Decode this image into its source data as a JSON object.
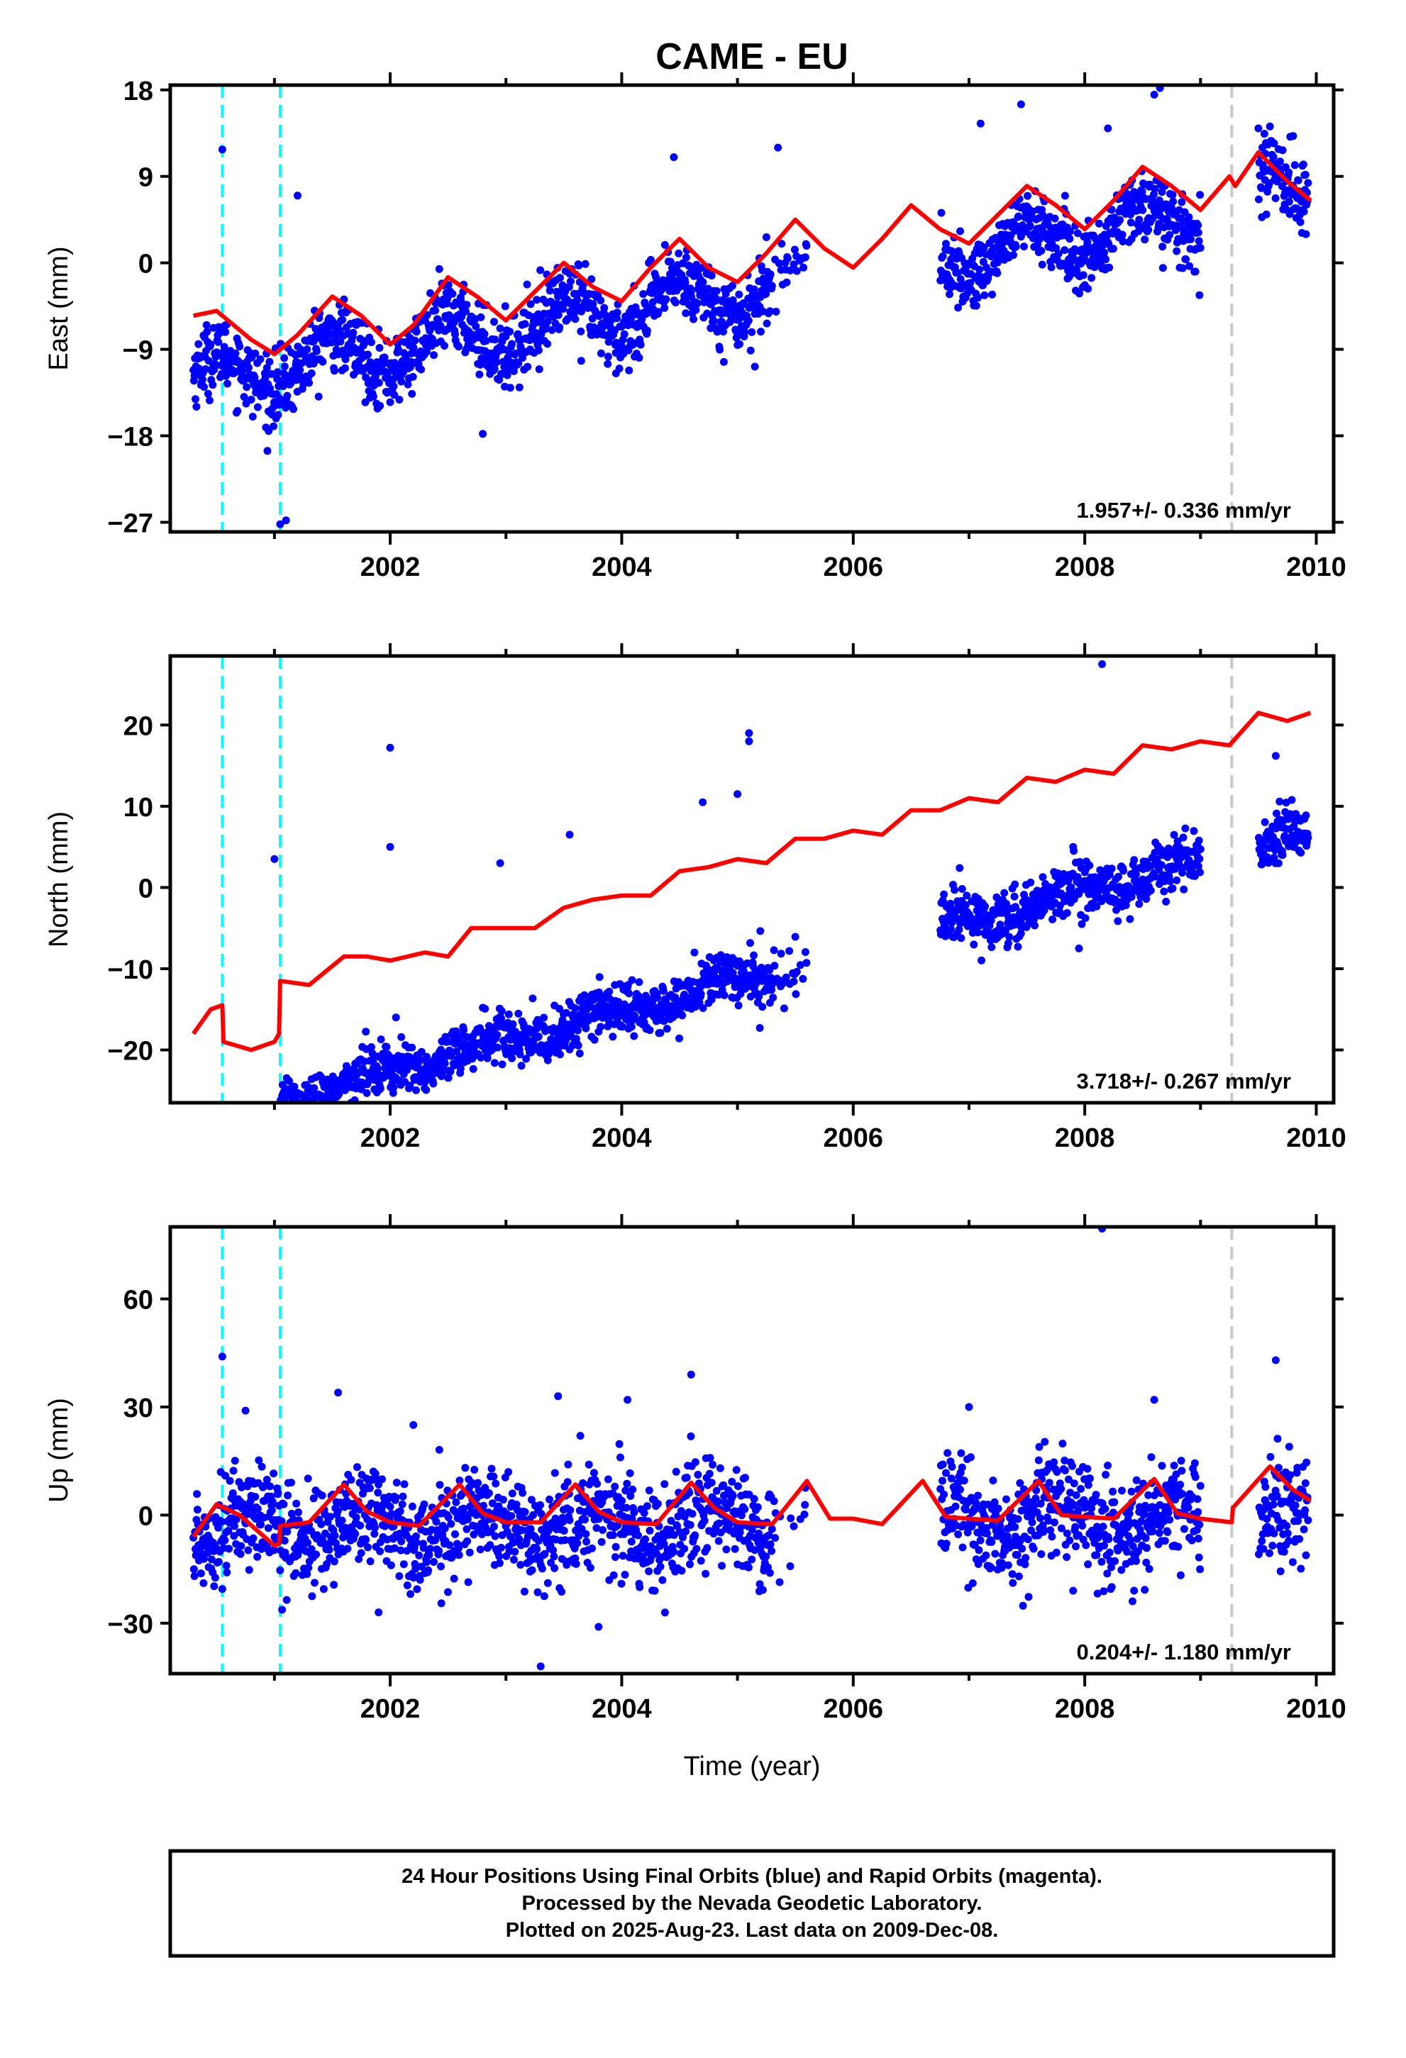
{
  "title": "CAME - EU",
  "xlabel": "Time (year)",
  "caption": {
    "line1": "24 Hour Positions Using Final Orbits (blue) and Rapid Orbits (magenta).",
    "line2": "Processed by the Nevada Geodetic Laboratory.",
    "line3": "Plotted on 2025-Aug-23. Last data on 2009-Dec-08."
  },
  "colors": {
    "points": "#0000ff",
    "model": "#ff0000",
    "equipment_change": "#00ffff",
    "other_change": "#c8c8c8"
  },
  "chart_data": [
    {
      "type": "scatter",
      "name": "east",
      "ylabel": "East (mm)",
      "xlim": [
        2000.1,
        2010.15
      ],
      "ylim": [
        -28,
        18.5
      ],
      "yticks": [
        18,
        9,
        0,
        -9,
        -18,
        -27
      ],
      "xticks": [
        2002,
        2004,
        2006,
        2008,
        2010
      ],
      "rate_label": "1.957+/- 0.336 mm/yr",
      "trend": -5.5,
      "rate": 1.957,
      "offsets": [
        [
          2009.27,
          2.0
        ]
      ],
      "annual_amp": 2.4,
      "annual_phase": 0.25,
      "noise": 1.8,
      "gaps": [
        [
          2005.6,
          2006.75
        ],
        [
          2009.0,
          2009.5
        ]
      ],
      "sparse": [
        [
          2005.3,
          2005.6,
          0.3
        ]
      ],
      "outliers": [
        [
          2000.55,
          11.8
        ],
        [
          2000.95,
          -17.5
        ],
        [
          2001.2,
          7.0
        ],
        [
          2001.1,
          -26.8
        ],
        [
          2001.05,
          -27.2
        ],
        [
          2002.0,
          -14.5
        ],
        [
          2002.8,
          -17.8
        ],
        [
          2003.65,
          -10.2
        ],
        [
          2003.95,
          -11.5
        ],
        [
          2004.45,
          11.0
        ],
        [
          2005.15,
          -10.8
        ],
        [
          2005.35,
          12.0
        ],
        [
          2007.1,
          14.5
        ],
        [
          2007.45,
          16.5
        ],
        [
          2008.2,
          14.0
        ],
        [
          2008.6,
          17.5
        ],
        [
          2008.65,
          18.2
        ],
        [
          2009.5,
          14.0
        ],
        [
          2009.8,
          13.2
        ]
      ],
      "model": [
        [
          2000.3,
          -5.5
        ],
        [
          2000.5,
          -5.0
        ],
        [
          2000.8,
          -8.0
        ],
        [
          2001.0,
          -9.5
        ],
        [
          2001.2,
          -7.5
        ],
        [
          2001.5,
          -3.5
        ],
        [
          2001.75,
          -5.5
        ],
        [
          2002.0,
          -8.5
        ],
        [
          2002.2,
          -6.5
        ],
        [
          2002.5,
          -1.5
        ],
        [
          2002.75,
          -3.5
        ],
        [
          2003.0,
          -6.0
        ],
        [
          2003.25,
          -3.0
        ],
        [
          2003.5,
          0.0
        ],
        [
          2003.75,
          -2.5
        ],
        [
          2004.0,
          -4.0
        ],
        [
          2004.25,
          -0.5
        ],
        [
          2004.5,
          2.5
        ],
        [
          2004.75,
          -0.5
        ],
        [
          2005.0,
          -2.0
        ],
        [
          2005.25,
          1.0
        ],
        [
          2005.5,
          4.5
        ],
        [
          2005.75,
          1.5
        ],
        [
          2006.0,
          -0.5
        ],
        [
          2006.25,
          2.5
        ],
        [
          2006.5,
          6.0
        ],
        [
          2006.75,
          3.5
        ],
        [
          2007.0,
          2.0
        ],
        [
          2007.25,
          5.0
        ],
        [
          2007.5,
          8.0
        ],
        [
          2007.75,
          6.0
        ],
        [
          2008.0,
          3.5
        ],
        [
          2008.25,
          6.5
        ],
        [
          2008.5,
          10.0
        ],
        [
          2008.75,
          8.0
        ],
        [
          2009.0,
          5.5
        ],
        [
          2009.25,
          9.0
        ],
        [
          2009.3,
          8.0
        ],
        [
          2009.5,
          11.5
        ],
        [
          2009.75,
          8.5
        ],
        [
          2009.95,
          6.5
        ]
      ]
    },
    {
      "type": "scatter",
      "name": "north",
      "ylabel": "North (mm)",
      "xlim": [
        2000.1,
        2010.15
      ],
      "ylim": [
        -26.5,
        28.5
      ],
      "yticks": [
        20,
        10,
        0,
        -10,
        -20
      ],
      "xticks": [
        2002,
        2004,
        2006,
        2008,
        2010
      ],
      "rate_label": "3.718+/- 0.267 mm/yr",
      "trend": -11.0,
      "rate": 3.718,
      "offsets": [
        [
          2000.55,
          -5.0
        ],
        [
          2001.05,
          7.5
        ]
      ],
      "annual_amp": 1.0,
      "annual_phase": 0.6,
      "noise": 1.6,
      "gaps": [
        [
          2005.6,
          2006.75
        ],
        [
          2009.0,
          2009.5
        ]
      ],
      "sparse": [
        [
          2005.3,
          2005.6,
          0.3
        ]
      ],
      "outliers": [
        [
          2001.0,
          3.5
        ],
        [
          2002.0,
          17.2
        ],
        [
          2002.0,
          5.0
        ],
        [
          2002.05,
          -16.0
        ],
        [
          2002.8,
          -14.8
        ],
        [
          2002.95,
          3.0
        ],
        [
          2003.55,
          6.5
        ],
        [
          2003.65,
          -13.5
        ],
        [
          2004.7,
          10.5
        ],
        [
          2005.0,
          11.5
        ],
        [
          2005.1,
          19.0
        ],
        [
          2005.1,
          18.0
        ],
        [
          2007.9,
          5.0
        ],
        [
          2007.95,
          -7.5
        ],
        [
          2008.15,
          27.5
        ],
        [
          2009.65,
          16.2
        ]
      ],
      "model": [
        [
          2000.3,
          -18.0
        ],
        [
          2000.45,
          -15.0
        ],
        [
          2000.55,
          -14.5
        ],
        [
          2000.56,
          -19.0
        ],
        [
          2000.8,
          -20.0
        ],
        [
          2001.0,
          -19.0
        ],
        [
          2001.04,
          -18.0
        ],
        [
          2001.05,
          -11.5
        ],
        [
          2001.3,
          -12.0
        ],
        [
          2001.6,
          -8.5
        ],
        [
          2001.8,
          -8.5
        ],
        [
          2002.0,
          -9.0
        ],
        [
          2002.3,
          -8.0
        ],
        [
          2002.5,
          -8.5
        ],
        [
          2002.7,
          -5.0
        ],
        [
          2003.0,
          -5.0
        ],
        [
          2003.25,
          -5.0
        ],
        [
          2003.5,
          -2.5
        ],
        [
          2003.75,
          -1.5
        ],
        [
          2004.0,
          -1.0
        ],
        [
          2004.25,
          -1.0
        ],
        [
          2004.5,
          2.0
        ],
        [
          2004.75,
          2.5
        ],
        [
          2005.0,
          3.5
        ],
        [
          2005.25,
          3.0
        ],
        [
          2005.5,
          6.0
        ],
        [
          2005.75,
          6.0
        ],
        [
          2006.0,
          7.0
        ],
        [
          2006.25,
          6.5
        ],
        [
          2006.5,
          9.5
        ],
        [
          2006.75,
          9.5
        ],
        [
          2007.0,
          11.0
        ],
        [
          2007.25,
          10.5
        ],
        [
          2007.5,
          13.5
        ],
        [
          2007.75,
          13.0
        ],
        [
          2008.0,
          14.5
        ],
        [
          2008.25,
          14.0
        ],
        [
          2008.5,
          17.5
        ],
        [
          2008.75,
          17.0
        ],
        [
          2009.0,
          18.0
        ],
        [
          2009.25,
          17.5
        ],
        [
          2009.5,
          21.5
        ],
        [
          2009.75,
          20.5
        ],
        [
          2009.95,
          21.5
        ]
      ]
    },
    {
      "type": "scatter",
      "name": "up",
      "ylabel": "Up (mm)",
      "xlim": [
        2000.1,
        2010.15
      ],
      "ylim": [
        -44,
        80
      ],
      "yticks": [
        60,
        30,
        0,
        -30
      ],
      "xticks": [
        2002,
        2004,
        2006,
        2008,
        2010
      ],
      "rate_label": "0.204+/- 1.180 mm/yr",
      "trend": -1.0,
      "rate": 0.204,
      "offsets": [],
      "annual_amp": 4.5,
      "annual_phase": 0.55,
      "noise": 7.0,
      "gaps": [
        [
          2005.6,
          2006.75
        ],
        [
          2009.0,
          2009.5
        ]
      ],
      "sparse": [
        [
          2005.3,
          2005.6,
          0.3
        ]
      ],
      "outliers": [
        [
          2000.55,
          44.0
        ],
        [
          2000.75,
          29.0
        ],
        [
          2001.55,
          34.0
        ],
        [
          2001.9,
          -27.0
        ],
        [
          2002.2,
          25.0
        ],
        [
          2003.3,
          -42.0
        ],
        [
          2003.45,
          33.0
        ],
        [
          2003.8,
          -31.0
        ],
        [
          2004.05,
          32.0
        ],
        [
          2004.6,
          39.0
        ],
        [
          2007.0,
          30.0
        ],
        [
          2008.15,
          79.5
        ],
        [
          2008.6,
          32.0
        ],
        [
          2009.65,
          43.0
        ],
        [
          2007.9,
          -21.0
        ],
        [
          2009.7,
          -10.0
        ]
      ],
      "model": [
        [
          2000.3,
          -6.0
        ],
        [
          2000.5,
          3.0
        ],
        [
          2000.7,
          0.0
        ],
        [
          2001.0,
          -8.5
        ],
        [
          2001.04,
          -8.0
        ],
        [
          2001.05,
          -3.0
        ],
        [
          2001.3,
          -2.0
        ],
        [
          2001.6,
          8.5
        ],
        [
          2001.8,
          1.0
        ],
        [
          2002.0,
          -2.0
        ],
        [
          2002.25,
          -3.0
        ],
        [
          2002.6,
          8.5
        ],
        [
          2002.8,
          0.5
        ],
        [
          2003.0,
          -2.0
        ],
        [
          2003.3,
          -2.0
        ],
        [
          2003.6,
          8.5
        ],
        [
          2003.8,
          1.0
        ],
        [
          2004.0,
          -2.0
        ],
        [
          2004.3,
          -2.5
        ],
        [
          2004.6,
          9.0
        ],
        [
          2004.8,
          2.0
        ],
        [
          2005.0,
          -2.0
        ],
        [
          2005.3,
          -2.5
        ],
        [
          2005.6,
          9.5
        ],
        [
          2005.8,
          -1.0
        ],
        [
          2006.0,
          -1.0
        ],
        [
          2006.25,
          -2.5
        ],
        [
          2006.6,
          9.5
        ],
        [
          2006.8,
          -0.5
        ],
        [
          2007.0,
          -1.0
        ],
        [
          2007.25,
          -1.5
        ],
        [
          2007.6,
          9.5
        ],
        [
          2007.8,
          0.0
        ],
        [
          2008.0,
          -0.5
        ],
        [
          2008.25,
          -1.0
        ],
        [
          2008.6,
          10.0
        ],
        [
          2008.8,
          0.5
        ],
        [
          2009.0,
          -1.0
        ],
        [
          2009.27,
          -2.0
        ],
        [
          2009.28,
          2.0
        ],
        [
          2009.6,
          13.5
        ],
        [
          2009.8,
          7.0
        ],
        [
          2009.95,
          4.0
        ]
      ]
    }
  ],
  "events_equipment": [
    2000.55,
    2001.05
  ],
  "events_other": [
    2009.27
  ]
}
